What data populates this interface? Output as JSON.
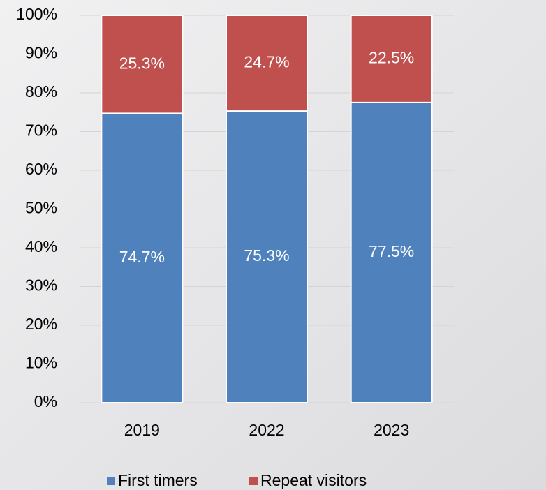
{
  "chart_data": {
    "type": "stacked_bar",
    "categories": [
      "2019",
      "2022",
      "2023"
    ],
    "series": [
      {
        "name": "First timers",
        "color": "#4f81bd",
        "values": [
          74.7,
          75.3,
          77.5
        ],
        "value_labels": [
          "74.7%",
          "75.3%",
          "77.5%"
        ]
      },
      {
        "name": "Repeat visitors",
        "color": "#c0504d",
        "values": [
          25.3,
          24.7,
          22.5
        ],
        "value_labels": [
          "25.3%",
          "24.7%",
          "22.5%"
        ]
      }
    ],
    "ylim": [
      0,
      100
    ],
    "yticks": [
      {
        "value": 0,
        "label": "0%"
      },
      {
        "value": 10,
        "label": "10%"
      },
      {
        "value": 20,
        "label": "20%"
      },
      {
        "value": 30,
        "label": "30%"
      },
      {
        "value": 40,
        "label": "40%"
      },
      {
        "value": 50,
        "label": "50%"
      },
      {
        "value": 60,
        "label": "60%"
      },
      {
        "value": 70,
        "label": "70%"
      },
      {
        "value": 80,
        "label": "80%"
      },
      {
        "value": 90,
        "label": "90%"
      },
      {
        "value": 100,
        "label": "100%"
      }
    ],
    "grid": true,
    "legend": "bottom"
  }
}
